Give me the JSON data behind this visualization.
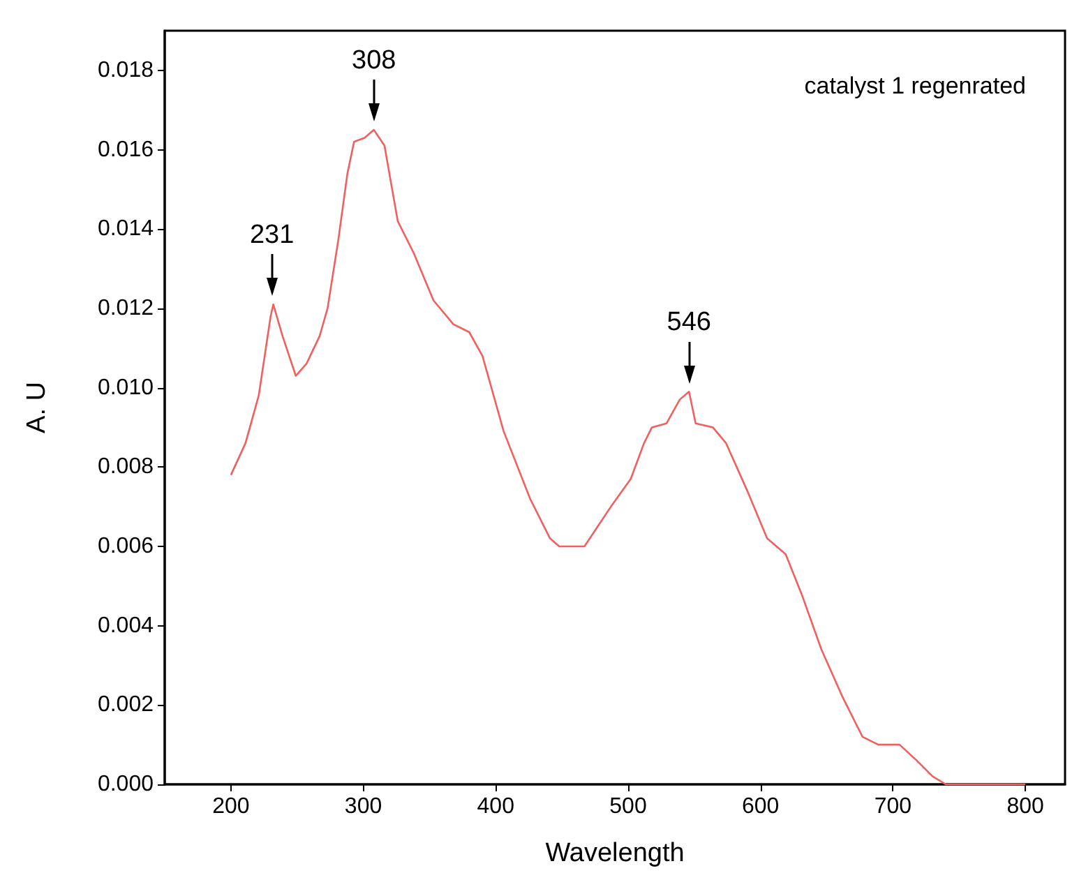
{
  "chart_data": {
    "type": "line",
    "xlabel": "Wavelength",
    "ylabel": "A. U",
    "annotations": [
      {
        "text": "231",
        "x": 231,
        "y": 0.0121
      },
      {
        "text": "308",
        "x": 308,
        "y": 0.0165
      },
      {
        "text": "546",
        "x": 546,
        "y": 0.0099
      },
      "catalyst 1 regenrated"
    ],
    "x": [
      200,
      211,
      221,
      230,
      232,
      239,
      249,
      257,
      267,
      273,
      281,
      288,
      293,
      301,
      308,
      316,
      326,
      338,
      353,
      368,
      380,
      390,
      406,
      426,
      441,
      448,
      467,
      477,
      487,
      502,
      512,
      518,
      529,
      539,
      546,
      551,
      564,
      574,
      590,
      605,
      619,
      631,
      646,
      662,
      677,
      689,
      705,
      718,
      730,
      740,
      770,
      800
    ],
    "series": [
      {
        "color": "#f06060",
        "values": [
          0.0078,
          0.0086,
          0.0098,
          0.0118,
          0.0121,
          0.0113,
          0.0103,
          0.0106,
          0.0113,
          0.012,
          0.0137,
          0.0154,
          0.0162,
          0.0163,
          0.0165,
          0.0161,
          0.0142,
          0.0134,
          0.0122,
          0.0116,
          0.0114,
          0.0108,
          0.0089,
          0.0072,
          0.0062,
          0.006,
          0.006,
          0.0065,
          0.007,
          0.0077,
          0.0086,
          0.009,
          0.0091,
          0.0097,
          0.0099,
          0.0091,
          0.009,
          0.0086,
          0.0074,
          0.0062,
          0.0058,
          0.0048,
          0.0034,
          0.0022,
          0.0012,
          0.001,
          0.001,
          0.0006,
          0.0002,
          0,
          0,
          0
        ]
      }
    ],
    "xlim": [
      150,
      830
    ],
    "ylim": [
      0,
      0.019
    ],
    "xticks": [
      200,
      300,
      400,
      500,
      600,
      700,
      800
    ],
    "yticks": [
      {
        "value": 0,
        "label": "0.000"
      },
      {
        "value": 0.002,
        "label": "0.002"
      },
      {
        "value": 0.004,
        "label": "0.004"
      },
      {
        "value": 0.006,
        "label": "0.006"
      },
      {
        "value": 0.008,
        "label": "0.008"
      },
      {
        "value": 0.01,
        "label": "0.010"
      },
      {
        "value": 0.012,
        "label": "0.012"
      },
      {
        "value": 0.014,
        "label": "0.014"
      },
      {
        "value": 0.016,
        "label": "0.016"
      },
      {
        "value": 0.018,
        "label": "0.018"
      }
    ],
    "grid": false,
    "marker": "none",
    "line_style": "solid"
  }
}
